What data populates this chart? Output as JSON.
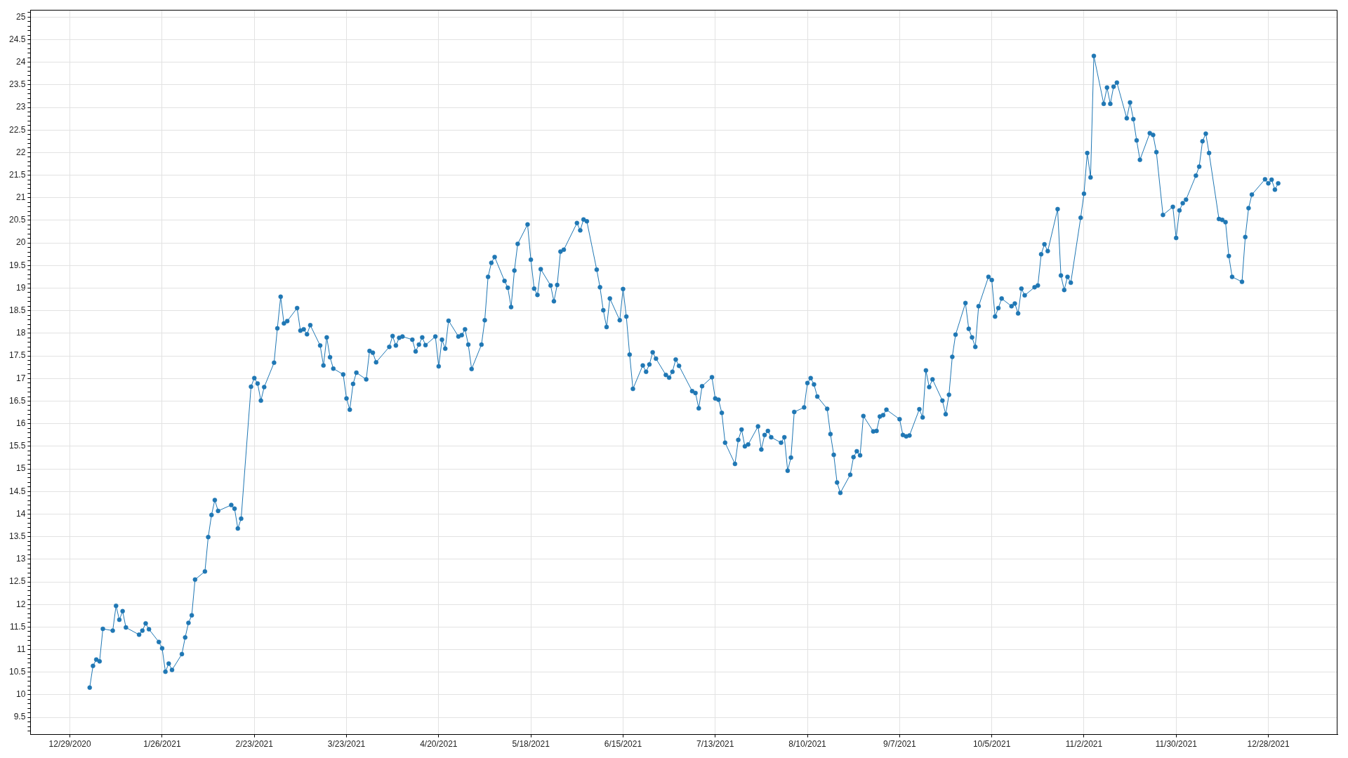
{
  "chart_data": {
    "type": "line",
    "x": [
      "2021-01-04",
      "2021-01-05",
      "2021-01-06",
      "2021-01-07",
      "2021-01-08",
      "2021-01-11",
      "2021-01-12",
      "2021-01-13",
      "2021-01-14",
      "2021-01-15",
      "2021-01-19",
      "2021-01-20",
      "2021-01-21",
      "2021-01-22",
      "2021-01-25",
      "2021-01-26",
      "2021-01-27",
      "2021-01-28",
      "2021-01-29",
      "2021-02-01",
      "2021-02-02",
      "2021-02-03",
      "2021-02-04",
      "2021-02-05",
      "2021-02-08",
      "2021-02-09",
      "2021-02-10",
      "2021-02-11",
      "2021-02-12",
      "2021-02-16",
      "2021-02-17",
      "2021-02-18",
      "2021-02-19",
      "2021-02-22",
      "2021-02-23",
      "2021-02-24",
      "2021-02-25",
      "2021-02-26",
      "2021-03-01",
      "2021-03-02",
      "2021-03-03",
      "2021-03-04",
      "2021-03-05",
      "2021-03-08",
      "2021-03-09",
      "2021-03-10",
      "2021-03-11",
      "2021-03-12",
      "2021-03-15",
      "2021-03-16",
      "2021-03-17",
      "2021-03-18",
      "2021-03-19",
      "2021-03-22",
      "2021-03-23",
      "2021-03-24",
      "2021-03-25",
      "2021-03-26",
      "2021-03-29",
      "2021-03-30",
      "2021-03-31",
      "2021-04-01",
      "2021-04-05",
      "2021-04-06",
      "2021-04-07",
      "2021-04-08",
      "2021-04-09",
      "2021-04-12",
      "2021-04-13",
      "2021-04-14",
      "2021-04-15",
      "2021-04-16",
      "2021-04-19",
      "2021-04-20",
      "2021-04-21",
      "2021-04-22",
      "2021-04-23",
      "2021-04-26",
      "2021-04-27",
      "2021-04-28",
      "2021-04-29",
      "2021-04-30",
      "2021-05-03",
      "2021-05-04",
      "2021-05-05",
      "2021-05-06",
      "2021-05-07",
      "2021-05-10",
      "2021-05-11",
      "2021-05-12",
      "2021-05-13",
      "2021-05-14",
      "2021-05-17",
      "2021-05-18",
      "2021-05-19",
      "2021-05-20",
      "2021-05-21",
      "2021-05-24",
      "2021-05-25",
      "2021-05-26",
      "2021-05-27",
      "2021-05-28",
      "2021-06-01",
      "2021-06-02",
      "2021-06-03",
      "2021-06-04",
      "2021-06-07",
      "2021-06-08",
      "2021-06-09",
      "2021-06-10",
      "2021-06-11",
      "2021-06-14",
      "2021-06-15",
      "2021-06-16",
      "2021-06-17",
      "2021-06-18",
      "2021-06-21",
      "2021-06-22",
      "2021-06-23",
      "2021-06-24",
      "2021-06-25",
      "2021-06-28",
      "2021-06-29",
      "2021-06-30",
      "2021-07-01",
      "2021-07-02",
      "2021-07-06",
      "2021-07-07",
      "2021-07-08",
      "2021-07-09",
      "2021-07-12",
      "2021-07-13",
      "2021-07-14",
      "2021-07-15",
      "2021-07-16",
      "2021-07-19",
      "2021-07-20",
      "2021-07-21",
      "2021-07-22",
      "2021-07-23",
      "2021-07-26",
      "2021-07-27",
      "2021-07-28",
      "2021-07-29",
      "2021-07-30",
      "2021-08-02",
      "2021-08-03",
      "2021-08-04",
      "2021-08-05",
      "2021-08-06",
      "2021-08-09",
      "2021-08-10",
      "2021-08-11",
      "2021-08-12",
      "2021-08-13",
      "2021-08-16",
      "2021-08-17",
      "2021-08-18",
      "2021-08-19",
      "2021-08-20",
      "2021-08-23",
      "2021-08-24",
      "2021-08-25",
      "2021-08-26",
      "2021-08-27",
      "2021-08-30",
      "2021-08-31",
      "2021-09-01",
      "2021-09-02",
      "2021-09-03",
      "2021-09-07",
      "2021-09-08",
      "2021-09-09",
      "2021-09-10",
      "2021-09-13",
      "2021-09-14",
      "2021-09-15",
      "2021-09-16",
      "2021-09-17",
      "2021-09-20",
      "2021-09-21",
      "2021-09-22",
      "2021-09-23",
      "2021-09-24",
      "2021-09-27",
      "2021-09-28",
      "2021-09-29",
      "2021-09-30",
      "2021-10-01",
      "2021-10-04",
      "2021-10-05",
      "2021-10-06",
      "2021-10-07",
      "2021-10-08",
      "2021-10-11",
      "2021-10-12",
      "2021-10-13",
      "2021-10-14",
      "2021-10-15",
      "2021-10-18",
      "2021-10-19",
      "2021-10-20",
      "2021-10-21",
      "2021-10-22",
      "2021-10-25",
      "2021-10-26",
      "2021-10-27",
      "2021-10-28",
      "2021-10-29",
      "2021-11-01",
      "2021-11-02",
      "2021-11-03",
      "2021-11-04",
      "2021-11-05",
      "2021-11-08",
      "2021-11-09",
      "2021-11-10",
      "2021-11-11",
      "2021-11-12",
      "2021-11-15",
      "2021-11-16",
      "2021-11-17",
      "2021-11-18",
      "2021-11-19",
      "2021-11-22",
      "2021-11-23",
      "2021-11-24",
      "2021-11-26",
      "2021-11-29",
      "2021-11-30",
      "2021-12-01",
      "2021-12-02",
      "2021-12-03",
      "2021-12-06",
      "2021-12-07",
      "2021-12-08",
      "2021-12-09",
      "2021-12-10",
      "2021-12-13",
      "2021-12-14",
      "2021-12-15",
      "2021-12-16",
      "2021-12-17",
      "2021-12-20",
      "2021-12-21",
      "2021-12-22",
      "2021-12-23",
      "2021-12-27",
      "2021-12-28",
      "2021-12-29",
      "2021-12-30",
      "2021-12-31"
    ],
    "values": [
      10.16,
      10.64,
      10.78,
      10.74,
      11.46,
      11.42,
      11.97,
      11.66,
      11.85,
      11.49,
      11.33,
      11.42,
      11.58,
      11.45,
      11.17,
      11.03,
      10.51,
      10.69,
      10.55,
      10.9,
      11.27,
      11.59,
      11.76,
      12.55,
      12.73,
      13.49,
      13.98,
      14.31,
      14.07,
      14.2,
      14.12,
      13.68,
      13.9,
      16.82,
      17.01,
      16.89,
      16.51,
      16.81,
      17.35,
      18.11,
      18.81,
      18.22,
      18.27,
      18.56,
      18.06,
      18.09,
      17.98,
      18.18,
      17.73,
      17.29,
      17.91,
      17.47,
      17.22,
      17.09,
      16.56,
      16.31,
      16.88,
      17.13,
      16.98,
      17.61,
      17.57,
      17.36,
      17.7,
      17.94,
      17.73,
      17.9,
      17.93,
      17.86,
      17.6,
      17.75,
      17.91,
      17.74,
      17.93,
      17.27,
      17.86,
      17.66,
      18.28,
      17.93,
      17.96,
      18.09,
      17.75,
      17.21,
      17.75,
      18.29,
      19.25,
      19.56,
      19.69,
      19.16,
      19.01,
      18.58,
      19.39,
      19.98,
      20.41,
      19.63,
      18.99,
      18.85,
      19.42,
      19.06,
      18.71,
      19.07,
      19.81,
      19.85,
      20.44,
      20.28,
      20.52,
      20.48,
      19.41,
      19.02,
      18.51,
      18.14,
      18.77,
      18.29,
      18.98,
      18.37,
      17.53,
      16.77,
      17.29,
      17.15,
      17.31,
      17.58,
      17.44,
      17.08,
      17.02,
      17.15,
      17.42,
      17.28,
      16.72,
      16.68,
      16.34,
      16.83,
      17.03,
      16.56,
      16.53,
      16.24,
      15.58,
      15.11,
      15.64,
      15.87,
      15.5,
      15.54,
      15.94,
      15.43,
      15.75,
      15.84,
      15.7,
      15.58,
      15.7,
      14.96,
      15.25,
      16.26,
      16.36,
      16.9,
      17.01,
      16.87,
      16.6,
      16.33,
      15.77,
      15.31,
      14.7,
      14.47,
      14.87,
      15.26,
      15.39,
      15.3,
      16.17,
      15.83,
      15.84,
      16.16,
      16.19,
      16.31,
      16.1,
      15.75,
      15.72,
      15.74,
      16.32,
      16.14,
      17.18,
      16.81,
      16.98,
      16.51,
      16.21,
      16.64,
      17.48,
      17.97,
      18.67,
      18.1,
      17.91,
      17.7,
      18.6,
      19.25,
      19.18,
      18.37,
      18.56,
      18.77,
      18.6,
      18.66,
      18.44,
      18.99,
      18.84,
      19.02,
      19.06,
      19.75,
      19.97,
      19.82,
      20.75,
      19.28,
      18.96,
      19.25,
      19.12,
      20.56,
      21.09,
      21.99,
      21.45,
      24.14,
      23.08,
      23.44,
      23.08,
      23.46,
      23.55,
      22.76,
      23.11,
      22.74,
      22.27,
      21.84,
      22.43,
      22.39,
      22.01,
      20.62,
      20.8,
      20.11,
      20.72,
      20.88,
      20.96,
      21.49,
      21.69,
      22.25,
      22.42,
      21.99,
      20.53,
      20.51,
      20.46,
      19.71,
      19.25,
      19.14,
      20.13,
      20.77,
      21.07,
      21.41,
      21.32,
      21.4,
      21.18,
      21.32
    ],
    "color": "#1f77b4",
    "xlim": [
      "2020-12-17",
      "2022-01-18"
    ],
    "xticks": [
      {
        "value": "2020-12-29",
        "label": "12/29/2020"
      },
      {
        "value": "2021-01-26",
        "label": "1/26/2021"
      },
      {
        "value": "2021-02-23",
        "label": "2/23/2021"
      },
      {
        "value": "2021-03-23",
        "label": "3/23/2021"
      },
      {
        "value": "2021-04-20",
        "label": "4/20/2021"
      },
      {
        "value": "2021-05-18",
        "label": "5/18/2021"
      },
      {
        "value": "2021-06-15",
        "label": "6/15/2021"
      },
      {
        "value": "2021-07-13",
        "label": "7/13/2021"
      },
      {
        "value": "2021-08-10",
        "label": "8/10/2021"
      },
      {
        "value": "2021-09-07",
        "label": "9/7/2021"
      },
      {
        "value": "2021-10-05",
        "label": "10/5/2021"
      },
      {
        "value": "2021-11-02",
        "label": "11/2/2021"
      },
      {
        "value": "2021-11-30",
        "label": "11/30/2021"
      },
      {
        "value": "2021-12-28",
        "label": "12/28/2021"
      }
    ],
    "ylim": [
      9.12,
      25.16
    ],
    "yticks": [
      {
        "value": 9.2,
        "label": null
      },
      {
        "value": 9.3,
        "label": null
      },
      {
        "value": 9.4,
        "label": null
      },
      9.5,
      {
        "value": 9.6,
        "label": null
      },
      {
        "value": 9.7,
        "label": null
      },
      {
        "value": 9.8,
        "label": null
      },
      {
        "value": 9.9,
        "label": null
      },
      10,
      {
        "value": 10.1,
        "label": null
      },
      {
        "value": 10.2,
        "label": null
      },
      {
        "value": 10.3,
        "label": null
      },
      {
        "value": 10.4,
        "label": null
      },
      10.5,
      {
        "value": 10.6,
        "label": null
      },
      {
        "value": 10.7,
        "label": null
      },
      {
        "value": 10.8,
        "label": null
      },
      {
        "value": 10.9,
        "label": null
      },
      11,
      {
        "value": 11.1,
        "label": null
      },
      {
        "value": 11.2,
        "label": null
      },
      {
        "value": 11.3,
        "label": null
      },
      {
        "value": 11.4,
        "label": null
      },
      11.5,
      {
        "value": 11.6,
        "label": null
      },
      {
        "value": 11.7,
        "label": null
      },
      {
        "value": 11.8,
        "label": null
      },
      {
        "value": 11.9,
        "label": null
      },
      12,
      {
        "value": 12.1,
        "label": null
      },
      {
        "value": 12.2,
        "label": null
      },
      {
        "value": 12.3,
        "label": null
      },
      {
        "value": 12.4,
        "label": null
      },
      12.5,
      {
        "value": 12.6,
        "label": null
      },
      {
        "value": 12.7,
        "label": null
      },
      {
        "value": 12.8,
        "label": null
      },
      {
        "value": 12.9,
        "label": null
      },
      13,
      {
        "value": 13.1,
        "label": null
      },
      {
        "value": 13.2,
        "label": null
      },
      {
        "value": 13.3,
        "label": null
      },
      {
        "value": 13.4,
        "label": null
      },
      13.5,
      {
        "value": 13.6,
        "label": null
      },
      {
        "value": 13.7,
        "label": null
      },
      {
        "value": 13.8,
        "label": null
      },
      {
        "value": 13.9,
        "label": null
      },
      14,
      {
        "value": 14.1,
        "label": null
      },
      {
        "value": 14.2,
        "label": null
      },
      {
        "value": 14.3,
        "label": null
      },
      {
        "value": 14.4,
        "label": null
      },
      14.5,
      {
        "value": 14.6,
        "label": null
      },
      {
        "value": 14.7,
        "label": null
      },
      {
        "value": 14.8,
        "label": null
      },
      {
        "value": 14.9,
        "label": null
      },
      15,
      {
        "value": 15.1,
        "label": null
      },
      {
        "value": 15.2,
        "label": null
      },
      {
        "value": 15.3,
        "label": null
      },
      {
        "value": 15.4,
        "label": null
      },
      15.5,
      {
        "value": 15.6,
        "label": null
      },
      {
        "value": 15.7,
        "label": null
      },
      {
        "value": 15.8,
        "label": null
      },
      {
        "value": 15.9,
        "label": null
      },
      16,
      {
        "value": 16.1,
        "label": null
      },
      {
        "value": 16.2,
        "label": null
      },
      {
        "value": 16.3,
        "label": null
      },
      {
        "value": 16.4,
        "label": null
      },
      16.5,
      {
        "value": 16.6,
        "label": null
      },
      {
        "value": 16.7,
        "label": null
      },
      {
        "value": 16.8,
        "label": null
      },
      {
        "value": 16.9,
        "label": null
      },
      17,
      {
        "value": 17.1,
        "label": null
      },
      {
        "value": 17.2,
        "label": null
      },
      {
        "value": 17.3,
        "label": null
      },
      {
        "value": 17.4,
        "label": null
      },
      17.5,
      {
        "value": 17.6,
        "label": null
      },
      {
        "value": 17.7,
        "label": null
      },
      {
        "value": 17.8,
        "label": null
      },
      {
        "value": 17.9,
        "label": null
      },
      18,
      {
        "value": 18.1,
        "label": null
      },
      {
        "value": 18.2,
        "label": null
      },
      {
        "value": 18.3,
        "label": null
      },
      {
        "value": 18.4,
        "label": null
      },
      18.5,
      {
        "value": 18.6,
        "label": null
      },
      {
        "value": 18.7,
        "label": null
      },
      {
        "value": 18.8,
        "label": null
      },
      {
        "value": 18.9,
        "label": null
      },
      19,
      {
        "value": 19.1,
        "label": null
      },
      {
        "value": 19.2,
        "label": null
      },
      {
        "value": 19.3,
        "label": null
      },
      {
        "value": 19.4,
        "label": null
      },
      19.5,
      {
        "value": 19.6,
        "label": null
      },
      {
        "value": 19.7,
        "label": null
      },
      {
        "value": 19.8,
        "label": null
      },
      {
        "value": 19.9,
        "label": null
      },
      20,
      {
        "value": 20.1,
        "label": null
      },
      {
        "value": 20.2,
        "label": null
      },
      {
        "value": 20.3,
        "label": null
      },
      {
        "value": 20.4,
        "label": null
      },
      20.5,
      {
        "value": 20.6,
        "label": null
      },
      {
        "value": 20.7,
        "label": null
      },
      {
        "value": 20.8,
        "label": null
      },
      {
        "value": 20.9,
        "label": null
      },
      21,
      {
        "value": 21.1,
        "label": null
      },
      {
        "value": 21.2,
        "label": null
      },
      {
        "value": 21.3,
        "label": null
      },
      {
        "value": 21.4,
        "label": null
      },
      21.5,
      {
        "value": 21.6,
        "label": null
      },
      {
        "value": 21.7,
        "label": null
      },
      {
        "value": 21.8,
        "label": null
      },
      {
        "value": 21.9,
        "label": null
      },
      22,
      {
        "value": 22.1,
        "label": null
      },
      {
        "value": 22.2,
        "label": null
      },
      {
        "value": 22.3,
        "label": null
      },
      {
        "value": 22.4,
        "label": null
      },
      22.5,
      {
        "value": 22.6,
        "label": null
      },
      {
        "value": 22.7,
        "label": null
      },
      {
        "value": 22.8,
        "label": null
      },
      {
        "value": 22.9,
        "label": null
      },
      23,
      {
        "value": 23.1,
        "label": null
      },
      {
        "value": 23.2,
        "label": null
      },
      {
        "value": 23.3,
        "label": null
      },
      {
        "value": 23.4,
        "label": null
      },
      23.5,
      {
        "value": 23.6,
        "label": null
      },
      {
        "value": 23.7,
        "label": null
      },
      {
        "value": 23.8,
        "label": null
      },
      {
        "value": 23.9,
        "label": null
      },
      24,
      {
        "value": 24.1,
        "label": null
      },
      {
        "value": 24.2,
        "label": null
      },
      {
        "value": 24.3,
        "label": null
      },
      {
        "value": 24.4,
        "label": null
      },
      24.5,
      {
        "value": 24.6,
        "label": null
      },
      {
        "value": 24.7,
        "label": null
      },
      {
        "value": 24.8,
        "label": null
      },
      {
        "value": 24.9,
        "label": null
      },
      25,
      {
        "value": 25.1,
        "label": null
      }
    ],
    "grid": true,
    "marker": "circle",
    "line_style": "solid"
  }
}
